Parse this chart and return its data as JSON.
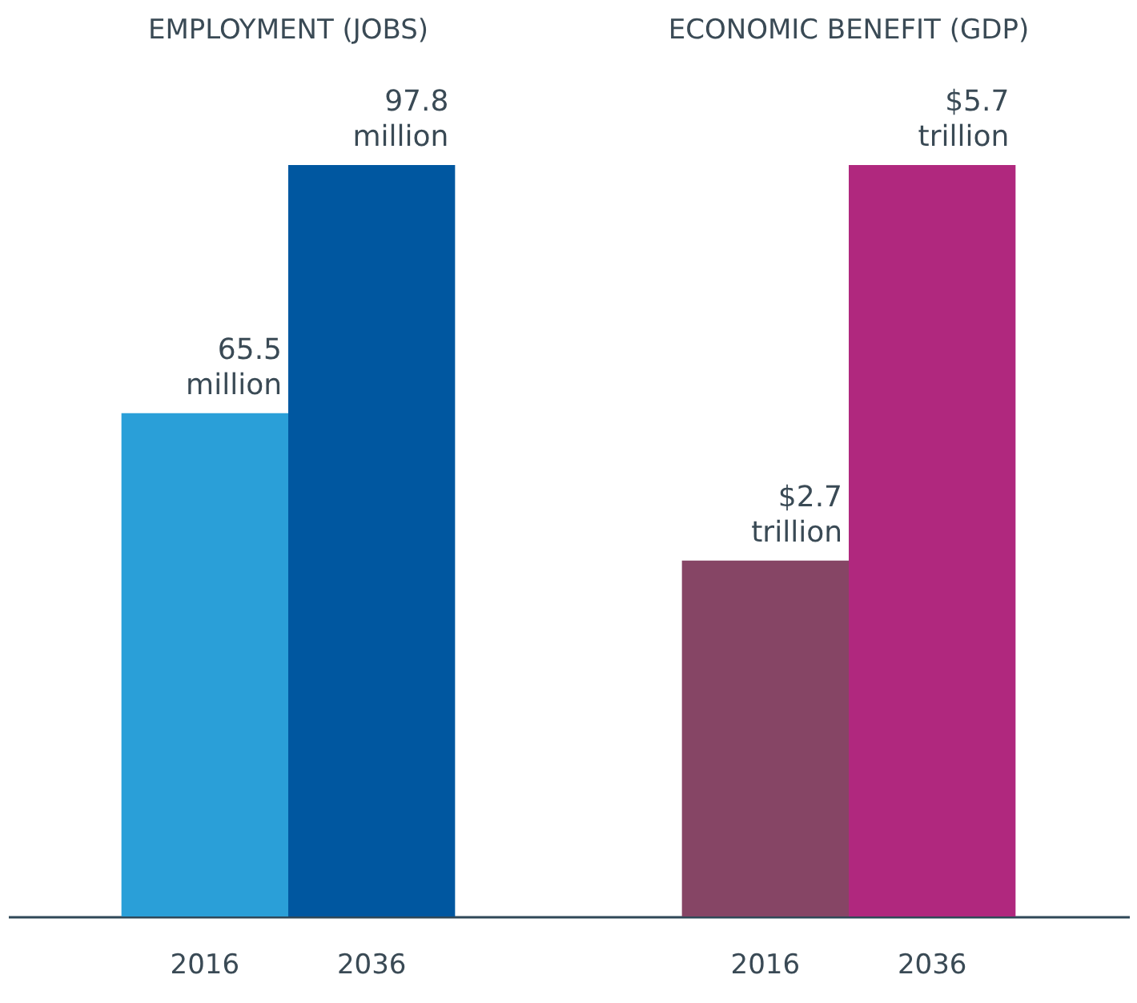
{
  "chart_data": [
    {
      "type": "bar",
      "title": "EMPLOYMENT (JOBS)",
      "categories": [
        "2016",
        "2036"
      ],
      "values": [
        65.5,
        97.8
      ],
      "colors": [
        "#2a9fd8",
        "#0057a0"
      ],
      "value_labels": [
        "65.5 million",
        "97.8 million"
      ],
      "tick_labels": "x"
    },
    {
      "type": "bar",
      "title": "ECONOMIC BENEFIT (GDP)",
      "categories": [
        "2016",
        "2036"
      ],
      "values": [
        2.7,
        5.7
      ],
      "colors": [
        "#864565",
        "#b0287e"
      ],
      "value_labels": [
        "$2.7 trillion",
        "$5.7 trillion"
      ],
      "tick_labels": "x"
    }
  ]
}
